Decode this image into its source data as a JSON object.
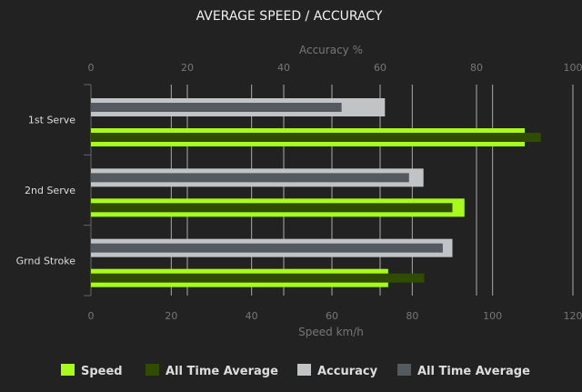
{
  "chart_data": {
    "type": "bar",
    "orientation": "horizontal",
    "title": "AVERAGE SPEED / ACCURACY",
    "categories": [
      "1st Serve",
      "2nd Serve",
      "Grnd Stroke"
    ],
    "top_axis": {
      "label": "Accuracy %",
      "range": [
        0,
        100
      ],
      "ticks": [
        "0",
        "20",
        "40",
        "60",
        "80",
        "100"
      ]
    },
    "bottom_axis": {
      "label": "Speed km/h",
      "range": [
        0,
        120
      ],
      "ticks": [
        "0",
        "20",
        "40",
        "60",
        "80",
        "100",
        "120"
      ]
    },
    "grid": true,
    "legend_position": "bottom",
    "series": [
      {
        "name": "Speed",
        "axis": "bottom",
        "color": "#a8fc1c",
        "values": [
          108,
          93,
          74
        ]
      },
      {
        "name": "All Time Average",
        "axis": "bottom",
        "color": "#2f4c00",
        "values": [
          112,
          90,
          83
        ]
      },
      {
        "name": "Accuracy",
        "axis": "top",
        "color": "#c0c4c6",
        "values": [
          61,
          69,
          75
        ]
      },
      {
        "name": "All Time Average",
        "axis": "top",
        "color": "#555a60",
        "values": [
          52,
          66,
          73
        ]
      }
    ]
  }
}
